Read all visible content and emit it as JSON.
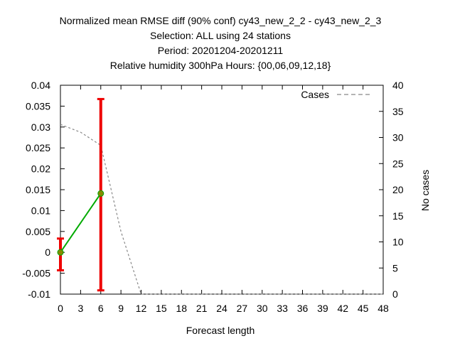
{
  "chart_data": {
    "type": "line",
    "title_lines": [
      "Normalized mean RMSE diff (90% conf) cy43_new_2_2 - cy43_new_2_3",
      "Selection: ALL using    24 stations",
      "Period: 20201204-20201211",
      "Relative humidity 300hPa   Hours: {00,06,09,12,18}"
    ],
    "xlabel": "Forecast length",
    "ylabel_right": "No cases",
    "xlim": [
      0,
      48
    ],
    "ylim_left": [
      -0.01,
      0.04
    ],
    "ylim_right": [
      0,
      40
    ],
    "x_ticks": [
      0,
      3,
      6,
      9,
      12,
      15,
      18,
      21,
      24,
      27,
      30,
      33,
      36,
      39,
      42,
      45,
      48
    ],
    "y_ticks_left": [
      "-0.01",
      "-0.005",
      "0",
      "0.005",
      "0.01",
      "0.015",
      "0.02",
      "0.025",
      "0.03",
      "0.035",
      "0.04"
    ],
    "y_ticks_right": [
      0,
      5,
      10,
      15,
      20,
      25,
      30,
      35,
      40
    ],
    "legend_position": "top-right",
    "series": [
      {
        "name": "",
        "axis": "left",
        "color": "#00aa00",
        "x": [
          0,
          6
        ],
        "y": [
          0.0,
          0.0141
        ],
        "ci_low": [
          -0.0043,
          -0.0091
        ],
        "ci_high": [
          0.0033,
          0.0367
        ],
        "marker_color": "#888800",
        "error_color": "#ee0000"
      },
      {
        "name": "Cases",
        "axis": "right",
        "color": "#888888",
        "dash": "dashed",
        "x": [
          0,
          3,
          6,
          9,
          12,
          48
        ],
        "y": [
          32.5,
          31,
          28.5,
          12,
          0,
          0
        ]
      }
    ]
  }
}
